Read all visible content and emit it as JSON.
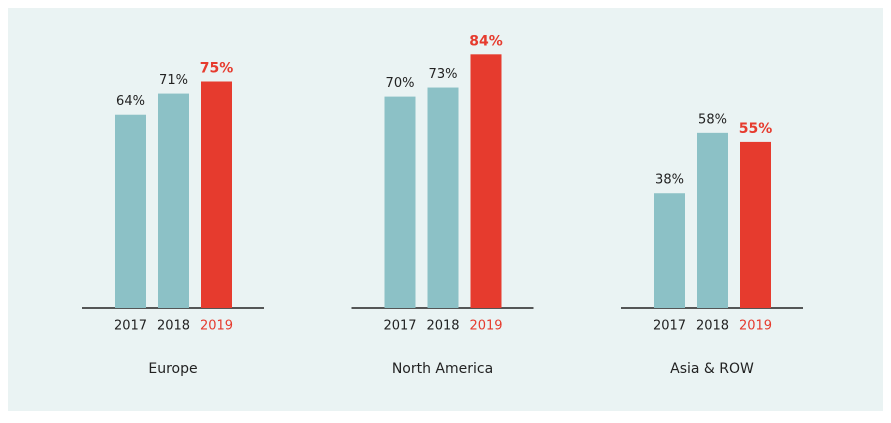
{
  "chart_data": {
    "type": "bar",
    "categories": [
      "Europe",
      "North America",
      "Asia & ROW"
    ],
    "series": [
      {
        "name": "2017",
        "color": "#8cc1c6",
        "values": [
          64,
          70,
          38
        ],
        "value_labels": [
          "64%",
          "70%",
          "38%"
        ]
      },
      {
        "name": "2018",
        "color": "#8cc1c6",
        "values": [
          71,
          73,
          58
        ],
        "value_labels": [
          "71%",
          "73%",
          "58%"
        ]
      },
      {
        "name": "2019",
        "color": "#e63b2e",
        "values": [
          75,
          84,
          55
        ],
        "value_labels": [
          "75%",
          "84%",
          "55%"
        ]
      }
    ]
  }
}
